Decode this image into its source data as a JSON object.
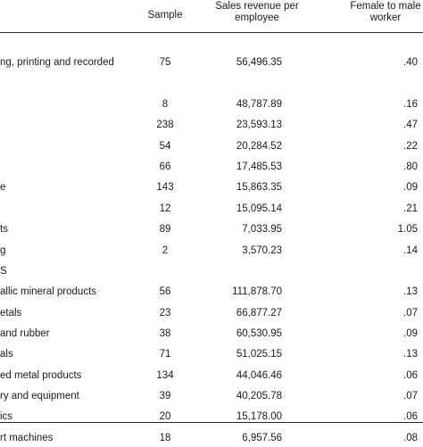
{
  "header": {
    "sample": "Sample",
    "sales_line1": "Sales revenue per",
    "sales_line2": "employee",
    "ratio_line1": "Female to male",
    "ratio_line2": "worker"
  },
  "rows": [
    {
      "label": "",
      "sample": "",
      "sales": "",
      "ratio": ""
    },
    {
      "label": "ng, printing and recorded",
      "sample": "75",
      "sales": "56,496.35",
      "ratio": ".40"
    },
    {
      "label": "",
      "sample": "",
      "sales": "",
      "ratio": ""
    },
    {
      "label": "",
      "sample": "8",
      "sales": "48,787.89",
      "ratio": ".16"
    },
    {
      "label": "",
      "sample": "238",
      "sales": "23,593.13",
      "ratio": ".47"
    },
    {
      "label": "",
      "sample": "54",
      "sales": "20,284.52",
      "ratio": ".22"
    },
    {
      "label": "",
      "sample": "66",
      "sales": "17,485.53",
      "ratio": ".80"
    },
    {
      "label": "e",
      "sample": "143",
      "sales": "15,863.35",
      "ratio": ".09"
    },
    {
      "label": "",
      "sample": "12",
      "sales": "15,095.14",
      "ratio": ".21"
    },
    {
      "label": "ts",
      "sample": "89",
      "sales": "7,033.95",
      "ratio": "1.05"
    },
    {
      "label": "g",
      "sample": "2",
      "sales": "3,570.23",
      "ratio": ".14"
    },
    {
      "label": "S",
      "sample": "",
      "sales": "",
      "ratio": ""
    },
    {
      "label": "allic mineral products",
      "sample": "56",
      "sales": "111,878.70",
      "ratio": ".13"
    },
    {
      "label": "etals",
      "sample": "23",
      "sales": "66,877.27",
      "ratio": ".07"
    },
    {
      "label": "and rubber",
      "sample": "38",
      "sales": "60,530.95",
      "ratio": ".09"
    },
    {
      "label": "als",
      "sample": "71",
      "sales": "51,025.15",
      "ratio": ".13"
    },
    {
      "label": "ed metal products",
      "sample": "134",
      "sales": "44,046.46",
      "ratio": ".06"
    },
    {
      "label": "ry and equipment",
      "sample": "39",
      "sales": "40,205.78",
      "ratio": ".07"
    },
    {
      "label": "ics",
      "sample": "20",
      "sales": "15,178.00",
      "ratio": ".06"
    },
    {
      "label": "rt machines",
      "sample": "18",
      "sales": "6,957.56",
      "ratio": ".08"
    }
  ]
}
